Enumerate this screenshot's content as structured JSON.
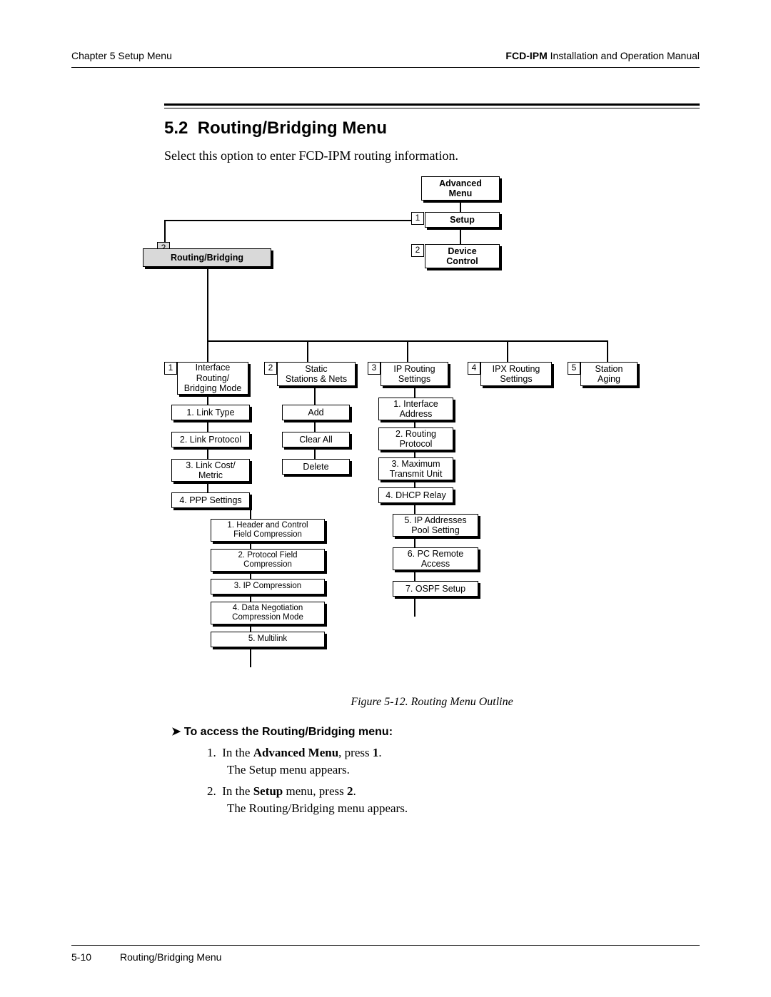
{
  "header": {
    "left": "Chapter 5  Setup Menu",
    "right_bold": "FCD-IPM",
    "right_rest": " Installation and Operation Manual"
  },
  "section": {
    "number": "5.2",
    "title": "Routing/Bridging Menu",
    "intro": "Select this option to enter FCD-IPM routing information."
  },
  "diagram": {
    "bg": "#ffffff",
    "shaded_fill": "#d9d9d9",
    "top": {
      "advanced": "Advanced\nMenu",
      "setup_num": "1",
      "setup": "Setup",
      "device_num": "2",
      "device": "Device\nControl"
    },
    "rb_num": "2",
    "rb_label": "Routing/Bridging",
    "columns": [
      {
        "num": "1",
        "head": "Interface\nRouting/\nBridging Mode",
        "items": [
          "1. Link Type",
          "2. Link Protocol",
          "3. Link Cost/\nMetric",
          "4. PPP Settings"
        ],
        "sub": [
          "1. Header and Control\nField Compression",
          "2. Protocol Field\nCompression",
          "3. IP Compression",
          "4. Data Negotiation\nCompression Mode",
          "5. Multilink"
        ]
      },
      {
        "num": "2",
        "head": "Static\nStations & Nets",
        "items": [
          "Add",
          "Clear All",
          "Delete"
        ]
      },
      {
        "num": "3",
        "head": "IP Routing\nSettings",
        "items": [
          "1. Interface\nAddress",
          "2. Routing\nProtocol",
          "3. Maximum\nTransmit Unit",
          "4. DHCP Relay",
          "5. IP Addresses\nPool Setting",
          "6. PC Remote\nAccess",
          "7. OSPF Setup"
        ]
      },
      {
        "num": "4",
        "head": "IPX Routing\nSettings",
        "items": []
      },
      {
        "num": "5",
        "head": "Station\nAging",
        "items": []
      }
    ]
  },
  "caption": "Figure 5-12.  Routing Menu Outline",
  "howto_heading": "To access the Routing/Bridging menu:",
  "steps": [
    {
      "n": "1.",
      "pre": "In the ",
      "bold": "Advanced Menu",
      "post": ", press ",
      "key": "1",
      "tail": ".",
      "sub": "The Setup menu appears."
    },
    {
      "n": "2.",
      "pre": "In the ",
      "bold": "Setup",
      "post": " menu, press ",
      "key": "2",
      "tail": ".",
      "sub": "The Routing/Bridging menu appears."
    }
  ],
  "footer": {
    "page": "5-10",
    "label": "Routing/Bridging Menu"
  }
}
